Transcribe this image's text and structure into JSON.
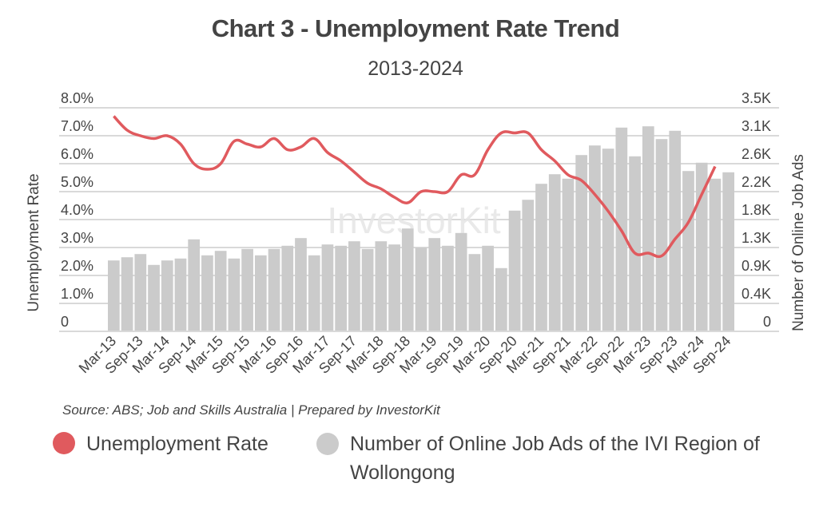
{
  "title": "Chart 3 - Unemployment Rate Trend",
  "subtitle": "2013-2024",
  "source": "Source: ABS; Job and Skills Australia | Prepared by InvestorKit",
  "watermark": "InvestorKit",
  "legend": [
    {
      "label": "Unemployment Rate",
      "color": "#e05a5e"
    },
    {
      "label": "Number of Online Job Ads of the IVI Region of Wollongong",
      "color": "#cbcbcb"
    }
  ],
  "chart_data": {
    "type": "bar+line",
    "title": "Chart 3 - Unemployment Rate Trend",
    "subtitle": "2013-2024",
    "xlabel": "",
    "ylabel_left": "Unemployment Rate",
    "ylabel_right": "Number of Online Job Ads",
    "left_ticks": [
      "0",
      "1.0%",
      "2.0%",
      "3.0%",
      "4.0%",
      "5.0%",
      "6.0%",
      "7.0%",
      "8.0%"
    ],
    "right_ticks": [
      "0",
      "0.4K",
      "0.9K",
      "1.3K",
      "1.8K",
      "2.2K",
      "2.6K",
      "3.1K",
      "3.5K"
    ],
    "ylim_left": [
      0,
      8
    ],
    "ylim_right": [
      0,
      3500
    ],
    "grid": true,
    "legend_position": "bottom",
    "x_tick_labels": [
      "Mar-13",
      "Sep-13",
      "Mar-14",
      "Sep-14",
      "Mar-15",
      "Sep-15",
      "Mar-16",
      "Sep-16",
      "Mar-17",
      "Sep-17",
      "Mar-18",
      "Sep-18",
      "Mar-19",
      "Sep-19",
      "Mar-20",
      "Sep-20",
      "Mar-21",
      "Sep-21",
      "Mar-22",
      "Sep-22",
      "Mar-23",
      "Sep-23",
      "Mar-24",
      "Sep-24"
    ],
    "categories": [
      "Mar-13",
      "Jun-13",
      "Sep-13",
      "Dec-13",
      "Mar-14",
      "Jun-14",
      "Sep-14",
      "Dec-14",
      "Mar-15",
      "Jun-15",
      "Sep-15",
      "Dec-15",
      "Mar-16",
      "Jun-16",
      "Sep-16",
      "Dec-16",
      "Mar-17",
      "Jun-17",
      "Sep-17",
      "Dec-17",
      "Mar-18",
      "Jun-18",
      "Sep-18",
      "Dec-18",
      "Mar-19",
      "Jun-19",
      "Sep-19",
      "Dec-19",
      "Mar-20",
      "Jun-20",
      "Sep-20",
      "Dec-20",
      "Mar-21",
      "Jun-21",
      "Sep-21",
      "Dec-21",
      "Mar-22",
      "Jun-22",
      "Sep-22",
      "Dec-22",
      "Mar-23",
      "Jun-23",
      "Sep-23",
      "Dec-23",
      "Mar-24",
      "Jun-24",
      "Sep-24"
    ],
    "series": [
      {
        "name": "Number of Online Job Ads of the IVI Region of Wollongong",
        "type": "bar",
        "axis": "right",
        "color": "#cbcbcb",
        "values": [
          1110,
          1160,
          1210,
          1040,
          1110,
          1140,
          1440,
          1190,
          1260,
          1140,
          1290,
          1190,
          1290,
          1340,
          1460,
          1190,
          1360,
          1340,
          1410,
          1290,
          1410,
          1360,
          1610,
          1310,
          1460,
          1340,
          1540,
          1210,
          1340,
          990,
          1890,
          2060,
          2310,
          2460,
          2390,
          2760,
          2910,
          2860,
          3190,
          2740,
          3210,
          3010,
          3140,
          2510,
          2640,
          2390,
          2490
        ]
      },
      {
        "name": "Unemployment Rate",
        "type": "line",
        "axis": "left",
        "color": "#e05a5e",
        "values": [
          7.7,
          7.2,
          7.0,
          6.9,
          7.0,
          6.7,
          6.0,
          5.8,
          6.0,
          6.8,
          6.7,
          6.6,
          6.9,
          6.5,
          6.6,
          6.9,
          6.4,
          6.1,
          5.7,
          5.3,
          5.1,
          4.8,
          4.6,
          5.0,
          5.0,
          5.0,
          5.6,
          5.6,
          6.5,
          7.1,
          7.1,
          7.1,
          6.5,
          6.1,
          5.6,
          5.4,
          4.9,
          4.3,
          3.6,
          2.8,
          2.8,
          2.7,
          3.3,
          3.9,
          4.9,
          5.9,
          null
        ]
      }
    ]
  }
}
